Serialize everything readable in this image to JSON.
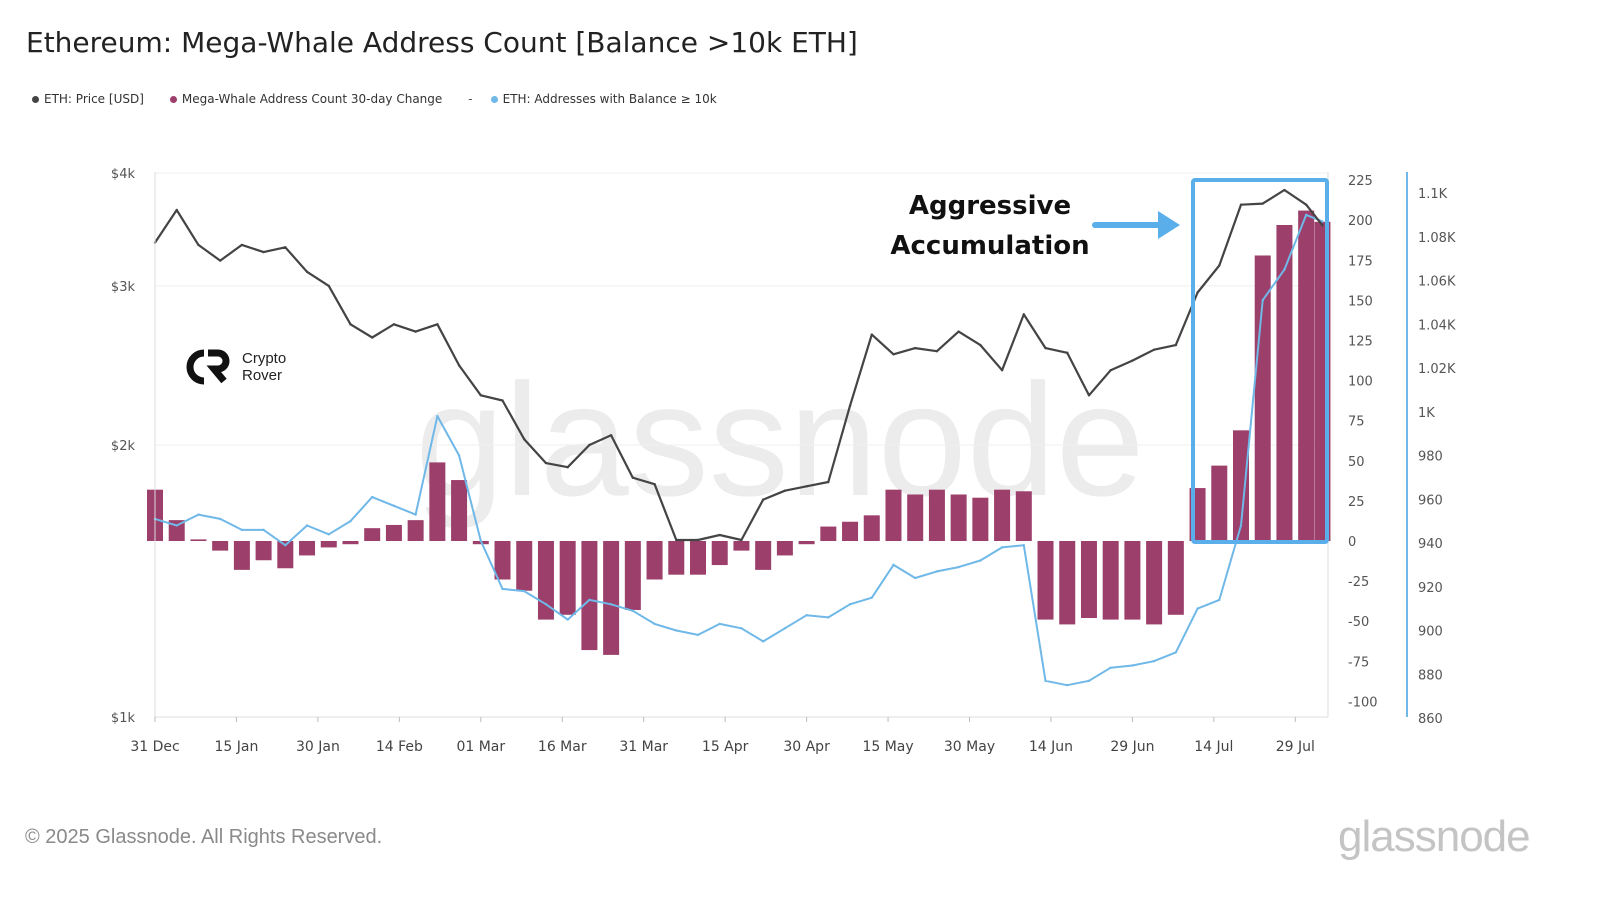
{
  "title": "Ethereum: Mega-Whale Address Count [Balance >10k ETH]",
  "legend": [
    {
      "label": "ETH: Price [USD]",
      "color": "#444444"
    },
    {
      "label": "Mega-Whale Address Count 30-day Change",
      "color": "#9c3f6a"
    },
    {
      "label": "ETH: Addresses with Balance ≥ 10k",
      "color": "#6fb8e8"
    }
  ],
  "legend_separator": "-",
  "annotation": {
    "line1": "Aggressive",
    "line2": "Accumulation",
    "color": "#5aaeea"
  },
  "watermark": "glassnode",
  "logo": {
    "line1": "Crypto",
    "line2": "Rover"
  },
  "footer": "© 2025 Glassnode. All Rights Reserved.",
  "brand": "glassnode",
  "chart_data": {
    "type": "line+bar",
    "x_ticks": [
      "31 Dec",
      "15 Jan",
      "30 Jan",
      "14 Feb",
      "01 Mar",
      "16 Mar",
      "31 Mar",
      "15 Apr",
      "30 Apr",
      "15 May",
      "30 May",
      "14 Jun",
      "29 Jun",
      "14 Jul",
      "29 Jul"
    ],
    "y_left": {
      "scale": "log",
      "range": [
        1000,
        4000
      ],
      "ticks": [
        "$1k",
        "$2k",
        "$3k",
        "$4k"
      ],
      "tick_values": [
        1000,
        2000,
        3000,
        4000
      ]
    },
    "y_mid": {
      "range": [
        -100,
        225
      ],
      "ticks": [
        "-100",
        "-75",
        "-50",
        "-25",
        "0",
        "25",
        "50",
        "75",
        "100",
        "125",
        "150",
        "175",
        "200",
        "225"
      ]
    },
    "y_right": {
      "range": [
        860,
        1100
      ],
      "ticks": [
        "860",
        "880",
        "900",
        "920",
        "940",
        "960",
        "980",
        "1K",
        "1.02K",
        "1.04K",
        "1.06K",
        "1.08K",
        "1.1K"
      ]
    },
    "grid": true,
    "dates": [
      "2024-12-31",
      "2025-01-04",
      "2025-01-08",
      "2025-01-12",
      "2025-01-16",
      "2025-01-20",
      "2025-01-24",
      "2025-01-28",
      "2025-02-01",
      "2025-02-05",
      "2025-02-09",
      "2025-02-13",
      "2025-02-17",
      "2025-02-21",
      "2025-02-25",
      "2025-03-01",
      "2025-03-05",
      "2025-03-09",
      "2025-03-13",
      "2025-03-17",
      "2025-03-21",
      "2025-03-25",
      "2025-03-29",
      "2025-04-02",
      "2025-04-06",
      "2025-04-10",
      "2025-04-14",
      "2025-04-18",
      "2025-04-22",
      "2025-04-26",
      "2025-04-30",
      "2025-05-04",
      "2025-05-08",
      "2025-05-12",
      "2025-05-16",
      "2025-05-20",
      "2025-05-24",
      "2025-05-28",
      "2025-06-01",
      "2025-06-05",
      "2025-06-09",
      "2025-06-13",
      "2025-06-17",
      "2025-06-21",
      "2025-06-25",
      "2025-06-29",
      "2025-07-03",
      "2025-07-07",
      "2025-07-11",
      "2025-07-15",
      "2025-07-19",
      "2025-07-23",
      "2025-07-27",
      "2025-07-31",
      "2025-08-03"
    ],
    "series": [
      {
        "name": "ETH: Price [USD]",
        "axis": "left",
        "kind": "line",
        "color": "#444444",
        "values": [
          3350,
          3640,
          3330,
          3200,
          3330,
          3270,
          3310,
          3110,
          3000,
          2720,
          2630,
          2720,
          2670,
          2720,
          2450,
          2270,
          2240,
          2030,
          1910,
          1890,
          2000,
          2050,
          1840,
          1810,
          1570,
          1570,
          1590,
          1570,
          1740,
          1780,
          1800,
          1820,
          2210,
          2650,
          2520,
          2560,
          2540,
          2670,
          2580,
          2420,
          2790,
          2560,
          2530,
          2270,
          2420,
          2480,
          2550,
          2580,
          2950,
          3160,
          3690,
          3700,
          3830,
          3690,
          3500
        ]
      },
      {
        "name": "Mega-Whale Address Count 30-day Change",
        "axis": "mid",
        "kind": "bar",
        "color": "#9c3f6a",
        "values": [
          32,
          13,
          1,
          -6,
          -18,
          -12,
          -17,
          -9,
          -4,
          -2,
          8,
          10,
          13,
          49,
          38,
          -2,
          -24,
          -31,
          -49,
          -46,
          -68,
          -71,
          -43,
          -24,
          -21,
          -21,
          -15,
          -6,
          -18,
          -9,
          -2,
          9,
          12,
          16,
          32,
          29,
          32,
          29,
          27,
          32,
          31,
          -49,
          -52,
          -48,
          -49,
          -49,
          -52,
          -46,
          33,
          47,
          69,
          178,
          197,
          206,
          199
        ]
      },
      {
        "name": "ETH: Addresses with Balance ≥ 10k",
        "axis": "right",
        "kind": "line",
        "color": "#6fb8e8",
        "values": [
          951,
          948,
          953,
          951,
          946,
          946,
          939,
          948,
          944,
          950,
          961,
          957,
          953,
          998,
          980,
          941,
          919,
          918,
          912,
          905,
          914,
          912,
          909,
          903,
          900,
          898,
          903,
          901,
          895,
          901,
          907,
          906,
          912,
          915,
          930,
          924,
          927,
          929,
          932,
          938,
          939,
          877,
          875,
          877,
          883,
          884,
          886,
          890,
          910,
          914,
          948,
          1051,
          1065,
          1090,
          1087
        ]
      }
    ]
  }
}
